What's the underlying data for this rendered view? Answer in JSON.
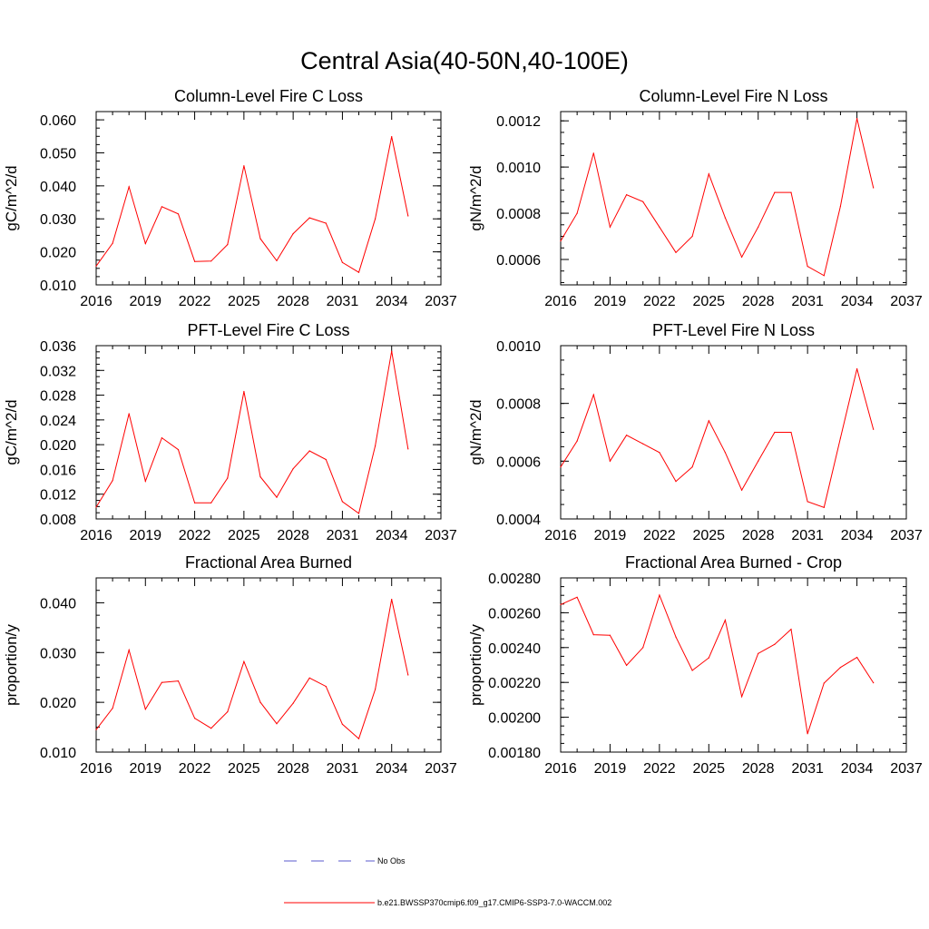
{
  "figure": {
    "title": "Central Asia(40-50N,40-100E)",
    "background": "#ffffff",
    "series_color": "#ff0000",
    "obs_color": "#5a5acd"
  },
  "legend": {
    "entries": [
      {
        "label": "No Obs",
        "style": "dashed",
        "color": "#5a5acd"
      },
      {
        "label": "b.e21.BWSSP370cmip6.f09_g17.CMIP6-SSP3-7.0-WACCM.002",
        "style": "solid",
        "color": "#ff0000"
      }
    ]
  },
  "chart_data": [
    {
      "type": "line",
      "title": "Column-Level Fire C Loss",
      "xlabel": "",
      "ylabel": "gC/m^2/d",
      "xlim": [
        2016,
        2037
      ],
      "ylim": [
        0.01,
        0.0625
      ],
      "x_ticks": [
        2016,
        2019,
        2022,
        2025,
        2028,
        2031,
        2034,
        2037
      ],
      "x_tick_labels": [
        "2016",
        "2019",
        "2022",
        "2025",
        "2028",
        "2031",
        "2034",
        "2037"
      ],
      "y_ticks": [
        0.01,
        0.02,
        0.03,
        0.04,
        0.05,
        0.06
      ],
      "y_tick_labels": [
        "0.010",
        "0.020",
        "0.030",
        "0.040",
        "0.050",
        "0.060"
      ],
      "x": [
        2016,
        2017,
        2018,
        2019,
        2020,
        2021,
        2022,
        2023,
        2024,
        2025,
        2026,
        2027,
        2028,
        2029,
        2030,
        2031,
        2032,
        2033,
        2034,
        2035
      ],
      "series": [
        {
          "values": [
            0.0157,
            0.0226,
            0.0397,
            0.0225,
            0.0337,
            0.0315,
            0.0171,
            0.0172,
            0.0222,
            0.0461,
            0.024,
            0.0173,
            0.0255,
            0.0303,
            0.0287,
            0.0168,
            0.0138,
            0.03,
            0.0549,
            0.0309
          ]
        }
      ]
    },
    {
      "type": "line",
      "title": "Column-Level Fire N Loss",
      "xlabel": "",
      "ylabel": "gN/m^2/d",
      "xlim": [
        2016,
        2037
      ],
      "ylim": [
        0.00049,
        0.00124
      ],
      "x_ticks": [
        2016,
        2019,
        2022,
        2025,
        2028,
        2031,
        2034,
        2037
      ],
      "x_tick_labels": [
        "2016",
        "2019",
        "2022",
        "2025",
        "2028",
        "2031",
        "2034",
        "2037"
      ],
      "y_ticks": [
        0.0006,
        0.0008,
        0.001,
        0.0012
      ],
      "y_tick_labels": [
        "0.0006",
        "0.0008",
        "0.0010",
        "0.0012"
      ],
      "x": [
        2016,
        2017,
        2018,
        2019,
        2020,
        2021,
        2022,
        2023,
        2024,
        2025,
        2026,
        2027,
        2028,
        2029,
        2030,
        2031,
        2032,
        2033,
        2034,
        2035
      ],
      "series": [
        {
          "values": [
            0.00068,
            0.0008,
            0.00106,
            0.00074,
            0.00088,
            0.00085,
            0.00074,
            0.00063,
            0.0007,
            0.00097,
            0.00078,
            0.00061,
            0.00074,
            0.00089,
            0.00089,
            0.00057,
            0.00053,
            0.00083,
            0.00121,
            0.00091
          ]
        }
      ]
    },
    {
      "type": "line",
      "title": "PFT-Level Fire C Loss",
      "xlabel": "",
      "ylabel": "gC/m^2/d",
      "xlim": [
        2016,
        2037
      ],
      "ylim": [
        0.008,
        0.036
      ],
      "x_ticks": [
        2016,
        2019,
        2022,
        2025,
        2028,
        2031,
        2034,
        2037
      ],
      "x_tick_labels": [
        "2016",
        "2019",
        "2022",
        "2025",
        "2028",
        "2031",
        "2034",
        "2037"
      ],
      "y_ticks": [
        0.008,
        0.012,
        0.016,
        0.02,
        0.024,
        0.028,
        0.032,
        0.036
      ],
      "y_tick_labels": [
        "0.008",
        "0.012",
        "0.016",
        "0.020",
        "0.024",
        "0.028",
        "0.032",
        "0.036"
      ],
      "x": [
        2016,
        2017,
        2018,
        2019,
        2020,
        2021,
        2022,
        2023,
        2024,
        2025,
        2026,
        2027,
        2028,
        2029,
        2030,
        2031,
        2032,
        2033,
        2034,
        2035
      ],
      "series": [
        {
          "values": [
            0.0099,
            0.0142,
            0.025,
            0.0141,
            0.0211,
            0.0192,
            0.0106,
            0.0106,
            0.0146,
            0.0286,
            0.0148,
            0.0115,
            0.0161,
            0.019,
            0.0176,
            0.0108,
            0.0089,
            0.0198,
            0.0351,
            0.0193
          ]
        }
      ]
    },
    {
      "type": "line",
      "title": "PFT-Level Fire N Loss",
      "xlabel": "",
      "ylabel": "gN/m^2/d",
      "xlim": [
        2016,
        2037
      ],
      "ylim": [
        0.0004,
        0.001
      ],
      "x_ticks": [
        2016,
        2019,
        2022,
        2025,
        2028,
        2031,
        2034,
        2037
      ],
      "x_tick_labels": [
        "2016",
        "2019",
        "2022",
        "2025",
        "2028",
        "2031",
        "2034",
        "2037"
      ],
      "y_ticks": [
        0.0004,
        0.0006,
        0.0008,
        0.001
      ],
      "y_tick_labels": [
        "0.0004",
        "0.0006",
        "0.0008",
        "0.0010"
      ],
      "x": [
        2016,
        2017,
        2018,
        2019,
        2020,
        2021,
        2022,
        2023,
        2024,
        2025,
        2026,
        2027,
        2028,
        2029,
        2030,
        2031,
        2032,
        2033,
        2034,
        2035
      ],
      "series": [
        {
          "values": [
            0.00058,
            0.00067,
            0.00083,
            0.0006,
            0.00069,
            0.00066,
            0.00063,
            0.00053,
            0.00058,
            0.00074,
            0.00063,
            0.0005,
            0.0006,
            0.0007,
            0.0007,
            0.00046,
            0.00044,
            0.00068,
            0.00092,
            0.00071
          ]
        }
      ]
    },
    {
      "type": "line",
      "title": "Fractional Area Burned",
      "xlabel": "",
      "ylabel": "proportion/y",
      "xlim": [
        2016,
        2037
      ],
      "ylim": [
        0.01,
        0.045
      ],
      "x_ticks": [
        2016,
        2019,
        2022,
        2025,
        2028,
        2031,
        2034,
        2037
      ],
      "x_tick_labels": [
        "2016",
        "2019",
        "2022",
        "2025",
        "2028",
        "2031",
        "2034",
        "2037"
      ],
      "y_ticks": [
        0.01,
        0.02,
        0.03,
        0.04
      ],
      "y_tick_labels": [
        "0.010",
        "0.020",
        "0.030",
        "0.040"
      ],
      "x": [
        2016,
        2017,
        2018,
        2019,
        2020,
        2021,
        2022,
        2023,
        2024,
        2025,
        2026,
        2027,
        2028,
        2029,
        2030,
        2031,
        2032,
        2033,
        2034,
        2035
      ],
      "series": [
        {
          "values": [
            0.0145,
            0.0188,
            0.0305,
            0.0186,
            0.024,
            0.0243,
            0.0168,
            0.0148,
            0.0181,
            0.0282,
            0.02,
            0.0157,
            0.0198,
            0.0249,
            0.0232,
            0.0156,
            0.0127,
            0.0226,
            0.0407,
            0.0255
          ]
        }
      ]
    },
    {
      "type": "line",
      "title": "Fractional Area Burned - Crop",
      "xlabel": "",
      "ylabel": "proportion/y",
      "xlim": [
        2016,
        2037
      ],
      "ylim": [
        0.0018,
        0.0028
      ],
      "x_ticks": [
        2016,
        2019,
        2022,
        2025,
        2028,
        2031,
        2034,
        2037
      ],
      "x_tick_labels": [
        "2016",
        "2019",
        "2022",
        "2025",
        "2028",
        "2031",
        "2034",
        "2037"
      ],
      "y_ticks": [
        0.0018,
        0.002,
        0.0022,
        0.0024,
        0.0026,
        0.0028
      ],
      "y_tick_labels": [
        "0.00180",
        "0.00200",
        "0.00220",
        "0.00240",
        "0.00260",
        "0.00280"
      ],
      "x": [
        2016,
        2017,
        2018,
        2019,
        2020,
        2021,
        2022,
        2023,
        2024,
        2025,
        2026,
        2027,
        2028,
        2029,
        2030,
        2031,
        2032,
        2033,
        2034,
        2035
      ],
      "series": [
        {
          "values": [
            0.002647,
            0.002689,
            0.002474,
            0.002471,
            0.002298,
            0.0024,
            0.002701,
            0.002461,
            0.002269,
            0.002341,
            0.002558,
            0.002118,
            0.002366,
            0.002419,
            0.002505,
            0.001905,
            0.002196,
            0.002286,
            0.002344,
            0.002198
          ]
        }
      ]
    }
  ]
}
